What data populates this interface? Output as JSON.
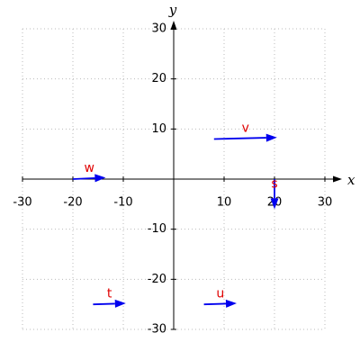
{
  "chart_data": {
    "type": "vector",
    "xlabel": "x",
    "ylabel": "y",
    "xlim": [
      -30,
      30
    ],
    "ylim": [
      -30,
      30
    ],
    "xticks": [
      -30,
      -20,
      -10,
      10,
      20,
      30
    ],
    "yticks": [
      -30,
      -20,
      -10,
      10,
      20,
      30
    ],
    "grid": true,
    "color": "#0000ee",
    "label_color": "#e00000",
    "vectors": [
      {
        "name": "v",
        "start": [
          8,
          8
        ],
        "end": [
          20.5,
          8.3
        ]
      },
      {
        "name": "w",
        "start": [
          -20,
          0
        ],
        "end": [
          -13.5,
          0.3
        ]
      },
      {
        "name": "s",
        "start": [
          20,
          0
        ],
        "end": [
          20,
          -6
        ]
      },
      {
        "name": "t",
        "start": [
          -16,
          -25
        ],
        "end": [
          -9.5,
          -24.8
        ]
      },
      {
        "name": "u",
        "start": [
          6,
          -25
        ],
        "end": [
          12.5,
          -24.8
        ]
      }
    ]
  }
}
